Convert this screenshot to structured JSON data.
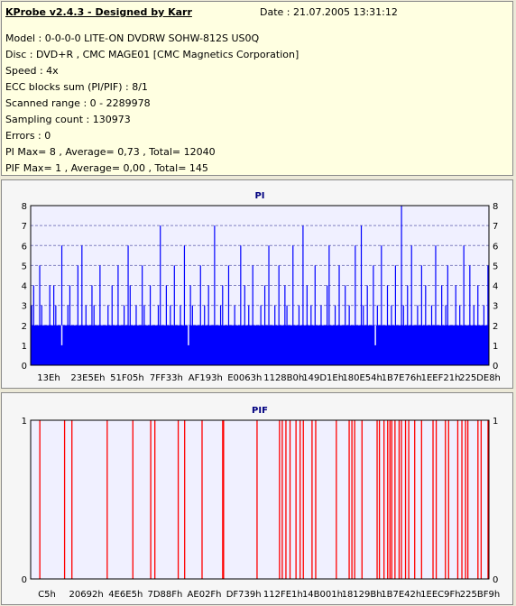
{
  "header": {
    "title": "KProbe v2.4.3 - Designed by Karr",
    "date": "Date : 21.07.2005 13:31:12"
  },
  "info_lines": [
    "Model : 0-0-0-0 LITE-ON DVDRW SOHW-812S  US0Q",
    "Disc : DVD+R , CMC MAGE01 [CMC Magnetics Corporation]",
    "Speed : 4x",
    "ECC blocks sum (PI/PIF) : 8/1",
    "Scanned range : 0 - 2289978",
    "Sampling count : 130973",
    "Errors : 0",
    "PI Max= 8 , Average= 0,73 , Total= 12040",
    "PIF Max= 1 , Average= 0,00 , Total= 145"
  ],
  "colors": {
    "pi_bar": "#0000ff",
    "pif_bar": "#ff0000",
    "plot_bg": "#f0f0ff",
    "grid": "#8080c0",
    "title": "#000080"
  },
  "chart_data": [
    {
      "type": "bar",
      "title": "PI",
      "ylim": [
        0,
        8
      ],
      "yticks": [
        0,
        1,
        2,
        3,
        4,
        5,
        6,
        7,
        8
      ],
      "xtick_labels": [
        "13Eh",
        "23E5Eh",
        "51F05h",
        "7FF33h",
        "AF193h",
        "E0063h",
        "1128B0h",
        "149D1Eh",
        "180E54h",
        "1B7E76h",
        "1EEF21h",
        "225DE8h"
      ],
      "x_range": [
        "13Eh",
        "225DE8h"
      ],
      "grid": true,
      "baseline_level": 2,
      "values": [
        3,
        4,
        2,
        2,
        5,
        3,
        2,
        2,
        2,
        4,
        2,
        4,
        3,
        2,
        2,
        6,
        2,
        2,
        3,
        4,
        2,
        2,
        2,
        5,
        2,
        6,
        2,
        3,
        2,
        2,
        4,
        3,
        2,
        2,
        5,
        2,
        2,
        2,
        3,
        2,
        4,
        2,
        2,
        5,
        2,
        2,
        3,
        2,
        6,
        4,
        2,
        2,
        3,
        2,
        2,
        5,
        3,
        2,
        2,
        4,
        2,
        2,
        2,
        3,
        7,
        2,
        2,
        4,
        2,
        3,
        2,
        5,
        2,
        2,
        3,
        2,
        6,
        2,
        2,
        4,
        3,
        2,
        2,
        2,
        5,
        2,
        3,
        2,
        4,
        2,
        2,
        7,
        2,
        2,
        3,
        4,
        2,
        2,
        5,
        2,
        2,
        3,
        2,
        2,
        6,
        2,
        4,
        2,
        3,
        2,
        5,
        2,
        2,
        2,
        3,
        2,
        4,
        2,
        6,
        2,
        2,
        3,
        2,
        5,
        2,
        2,
        4,
        3,
        2,
        2,
        6,
        2,
        2,
        3,
        2,
        7,
        2,
        4,
        2,
        3,
        2,
        5,
        2,
        2,
        3,
        2,
        2,
        4,
        6,
        2,
        2,
        3,
        2,
        5,
        2,
        2,
        4,
        2,
        3,
        2,
        2,
        6,
        2,
        2,
        7,
        3,
        2,
        4,
        2,
        2,
        5,
        2,
        3,
        2,
        6,
        2,
        2,
        4,
        2,
        3,
        2,
        5,
        2,
        2,
        8,
        3,
        2,
        4,
        2,
        6,
        2,
        2,
        3,
        2,
        5,
        2,
        4,
        2,
        2,
        3,
        2,
        6,
        2,
        2,
        4,
        2,
        3,
        5,
        2,
        2,
        2,
        4,
        2,
        3,
        2,
        6,
        2,
        2,
        5,
        2,
        3,
        2,
        4,
        2,
        2,
        3,
        2,
        5
      ],
      "dips": [
        {
          "index": 15,
          "value": 1
        },
        {
          "index": 78,
          "value": 1
        },
        {
          "index": 171,
          "value": 1
        }
      ]
    },
    {
      "type": "bar",
      "title": "PIF",
      "ylim": [
        0,
        1
      ],
      "yticks": [
        0,
        1
      ],
      "xtick_labels": [
        "C5h",
        "20692h",
        "4E6E5h",
        "7D88Fh",
        "AE02Fh",
        "DF739h",
        "112FE1h",
        "14B001h",
        "18129Bh",
        "1B7E42h",
        "1EEC9Fh",
        "225BF9h"
      ],
      "x_range": [
        "C5h",
        "225BF9h"
      ],
      "grid": true,
      "spike_positions": [
        0.02,
        0.074,
        0.09,
        0.167,
        0.223,
        0.262,
        0.271,
        0.322,
        0.336,
        0.374,
        0.419,
        0.421,
        0.494,
        0.543,
        0.549,
        0.557,
        0.566,
        0.579,
        0.588,
        0.595,
        0.614,
        0.622,
        0.667,
        0.695,
        0.701,
        0.707,
        0.723,
        0.756,
        0.761,
        0.771,
        0.779,
        0.784,
        0.788,
        0.795,
        0.804,
        0.809,
        0.818,
        0.825,
        0.838,
        0.853,
        0.878,
        0.885,
        0.905,
        0.912,
        0.932,
        0.941,
        0.949,
        0.954,
        0.976,
        0.983,
        0.998
      ]
    }
  ]
}
